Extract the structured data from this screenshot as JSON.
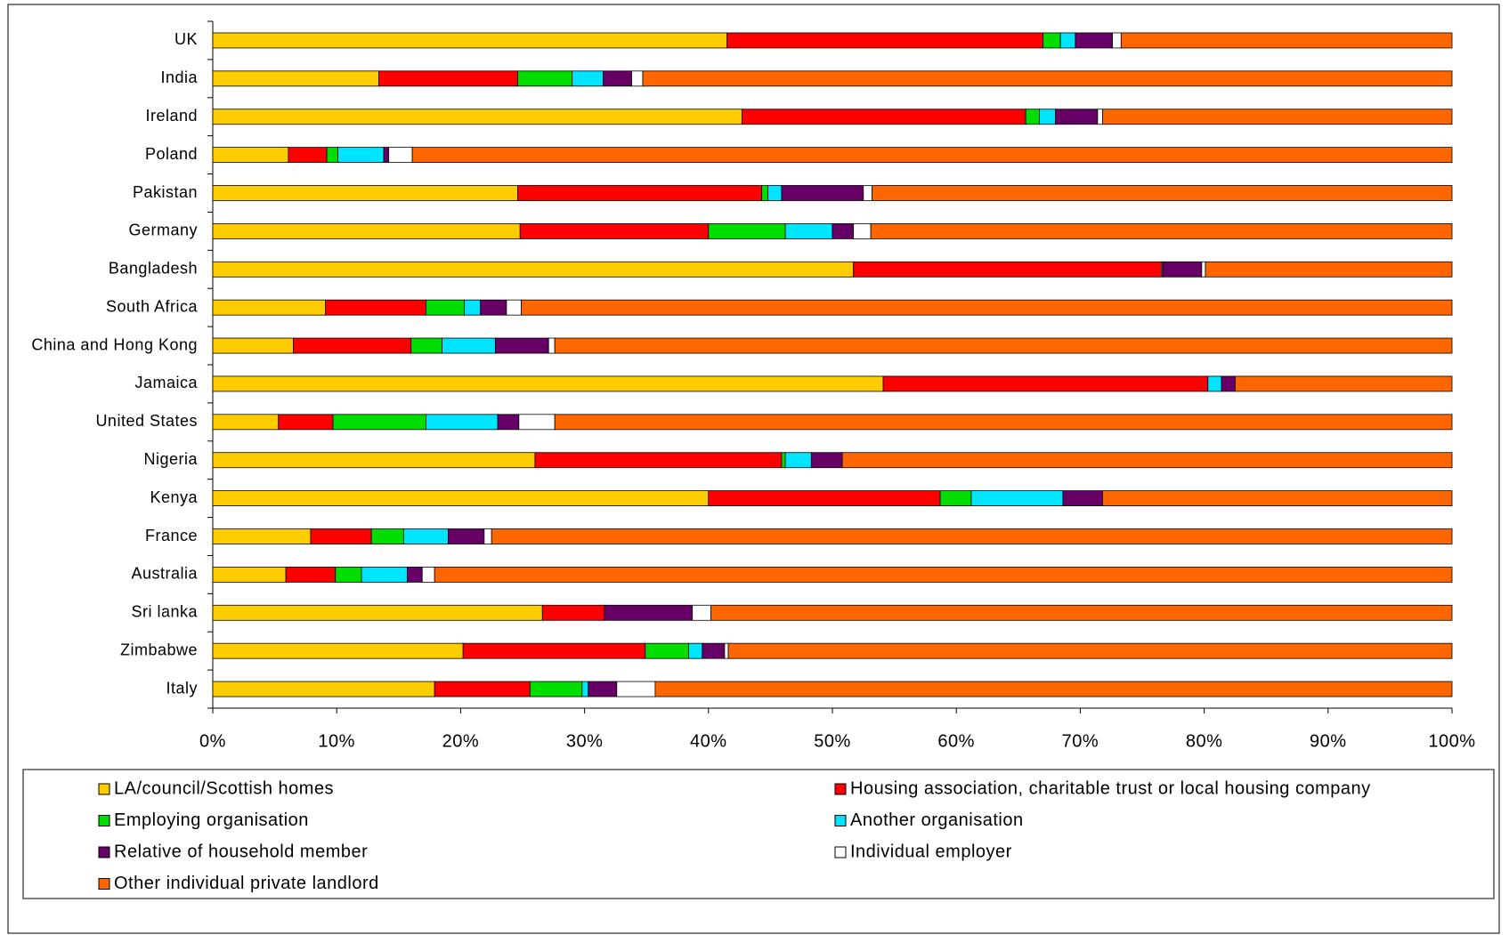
{
  "chart_data": {
    "type": "stacked-bar-horizontal",
    "categories": [
      "UK",
      "India",
      "Ireland",
      "Poland",
      "Pakistan",
      "Germany",
      "Bangladesh",
      "South Africa",
      "China and Hong Kong",
      "Jamaica",
      "United States",
      "Nigeria",
      "Kenya",
      "France",
      "Australia",
      "Sri lanka",
      "Zimbabwe",
      "Italy"
    ],
    "series": [
      {
        "name": "LA/council/Scottish homes",
        "color": "#FFCC00",
        "values": [
          41.5,
          13.4,
          42.7,
          6.1,
          24.6,
          24.8,
          51.7,
          9.1,
          6.5,
          54.1,
          5.3,
          26.0,
          40.0,
          7.9,
          5.9,
          26.6,
          20.2,
          17.9
        ]
      },
      {
        "name": "Housing association, charitable trust or local housing company",
        "color": "#FF0000",
        "values": [
          25.5,
          11.2,
          22.9,
          3.1,
          19.7,
          15.2,
          24.9,
          8.1,
          9.5,
          26.2,
          4.4,
          19.9,
          18.7,
          4.9,
          4.0,
          5.0,
          14.7,
          7.7
        ]
      },
      {
        "name": "Employing organisation",
        "color": "#00DD00",
        "values": [
          1.4,
          4.4,
          1.1,
          0.9,
          0.5,
          6.2,
          0,
          3.1,
          2.5,
          0,
          7.5,
          0.3,
          2.5,
          2.6,
          2.1,
          0,
          3.5,
          4.2
        ]
      },
      {
        "name": "Another organisation",
        "color": "#00E5FF",
        "values": [
          1.2,
          2.5,
          1.3,
          3.7,
          1.1,
          3.8,
          0.1,
          1.3,
          4.3,
          1.1,
          5.8,
          2.1,
          7.4,
          3.6,
          3.7,
          0,
          1.1,
          0.5
        ]
      },
      {
        "name": "Relative of household member",
        "color": "#660066",
        "values": [
          3.0,
          2.3,
          3.4,
          0.4,
          6.6,
          1.7,
          3.1,
          2.1,
          4.3,
          1.1,
          1.7,
          2.5,
          3.2,
          2.9,
          1.2,
          7.1,
          1.8,
          2.3
        ]
      },
      {
        "name": "Individual employer",
        "color": "#FFFFFF",
        "values": [
          0.7,
          0.9,
          0.4,
          1.9,
          0.7,
          1.4,
          0.3,
          1.2,
          0.5,
          0,
          2.9,
          0,
          0,
          0.6,
          1.0,
          1.5,
          0.3,
          3.1
        ]
      },
      {
        "name": "Other individual private landlord",
        "color": "#FF6600",
        "values": [
          26.7,
          65.3,
          28.2,
          83.9,
          46.8,
          46.9,
          19.9,
          75.1,
          72.4,
          17.5,
          72.4,
          49.2,
          28.2,
          77.5,
          82.1,
          59.8,
          58.4,
          64.3
        ]
      }
    ],
    "xlim": [
      0,
      100
    ],
    "xticks": [
      {
        "value": 0,
        "label": "0%"
      },
      {
        "value": 10,
        "label": "10%"
      },
      {
        "value": 20,
        "label": "20%"
      },
      {
        "value": 30,
        "label": "30%"
      },
      {
        "value": 40,
        "label": "40%"
      },
      {
        "value": 50,
        "label": "50%"
      },
      {
        "value": 60,
        "label": "60%"
      },
      {
        "value": 70,
        "label": "70%"
      },
      {
        "value": 80,
        "label": "80%"
      },
      {
        "value": 90,
        "label": "90%"
      },
      {
        "value": 100,
        "label": "100%"
      }
    ],
    "legend": "bottom"
  }
}
